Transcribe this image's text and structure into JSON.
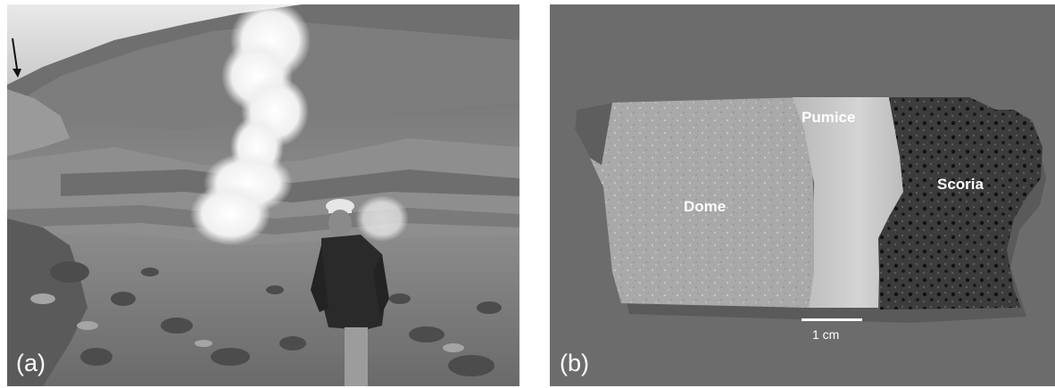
{
  "figure": {
    "panel_a": {
      "letter": "(a)",
      "description_icon": "downward-arrow-icon"
    },
    "panel_b": {
      "letter": "(b)",
      "labels": {
        "dome": "Dome",
        "pumice": "Pumice",
        "scoria": "Scoria"
      },
      "scale_bar_text": "1 cm"
    }
  }
}
